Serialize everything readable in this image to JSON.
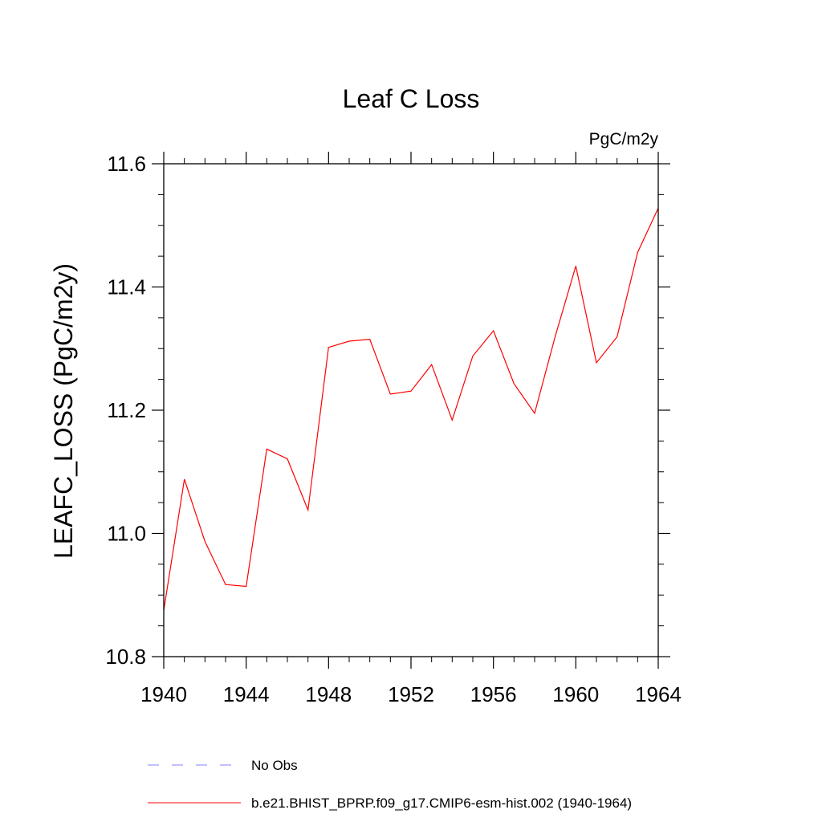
{
  "chart_data": {
    "type": "line",
    "title": "Leaf C Loss",
    "units_label": "PgC/m2y",
    "ylabel": "LEAFC_LOSS  (PgC/m2y)",
    "xlabel": "",
    "xlim": [
      1940,
      1964
    ],
    "ylim": [
      10.8,
      11.6
    ],
    "x_ticks": [
      1940,
      1944,
      1948,
      1952,
      1956,
      1960,
      1964
    ],
    "x_tick_labels": [
      "1940",
      "1944",
      "1948",
      "1952",
      "1956",
      "1960",
      "1964"
    ],
    "y_ticks": [
      10.8,
      11.0,
      11.2,
      11.4,
      11.6
    ],
    "y_tick_labels": [
      "10.8",
      "11.0",
      "11.2",
      "11.4",
      "11.6"
    ],
    "grid": false,
    "legend_position": "bottom",
    "series": [
      {
        "name": "b.e21.BHIST_BPRP.f09_g17.CMIP6-esm-hist.002 (1940-1964)",
        "color": "#ff0000",
        "style": "solid",
        "x": [
          1940,
          1941,
          1942,
          1943,
          1944,
          1945,
          1946,
          1947,
          1948,
          1949,
          1950,
          1951,
          1952,
          1953,
          1954,
          1955,
          1956,
          1957,
          1958,
          1959,
          1960,
          1961,
          1962,
          1963,
          1964
        ],
        "values": [
          10.875,
          11.088,
          10.987,
          10.917,
          10.914,
          11.137,
          11.121,
          11.038,
          11.302,
          11.312,
          11.315,
          11.226,
          11.231,
          11.274,
          11.184,
          11.288,
          11.329,
          11.243,
          11.195,
          11.32,
          11.434,
          11.277,
          11.319,
          11.456,
          11.528
        ]
      }
    ],
    "legend": [
      {
        "label": "No Obs",
        "color": "#8080ff",
        "style": "dashed"
      },
      {
        "label": "b.e21.BHIST_BPRP.f09_g17.CMIP6-esm-hist.002 (1940-1964)",
        "color": "#ff0000",
        "style": "solid"
      }
    ]
  }
}
